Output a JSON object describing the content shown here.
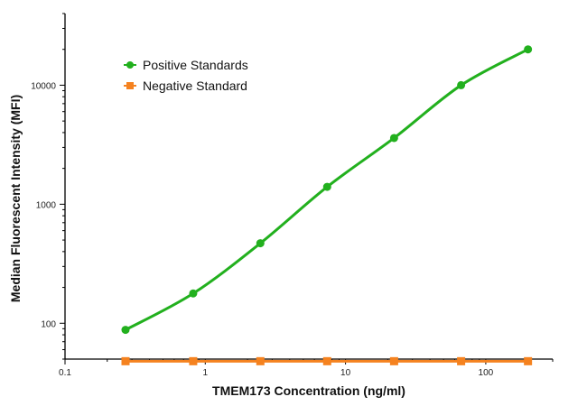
{
  "chart_data": {
    "type": "line",
    "xlabel": "TMEM173 Concentration (ng/ml)",
    "ylabel": "Median Fluorescent Intensity (MFI)",
    "x_scale": "log",
    "y_scale": "log",
    "xlim": [
      0.1,
      300
    ],
    "ylim": [
      50,
      40000
    ],
    "x_ticks": [
      0.1,
      1,
      10,
      100
    ],
    "x_tick_labels": [
      "0.1",
      "1",
      "10",
      "100"
    ],
    "y_ticks": [
      100,
      1000,
      10000
    ],
    "y_tick_labels": [
      "100",
      "1000",
      "10000"
    ],
    "grid": false,
    "legend_position": "top-left",
    "series": [
      {
        "name": "Positive Standards",
        "color": "#22b01e",
        "marker": "circle",
        "x": [
          0.27,
          0.82,
          2.47,
          7.4,
          22.2,
          66.7,
          200
        ],
        "y": [
          88,
          178,
          470,
          1400,
          3600,
          10000,
          20000
        ]
      },
      {
        "name": "Negative Standard",
        "color": "#f5821f",
        "marker": "square",
        "x": [
          0.27,
          0.82,
          2.47,
          7.4,
          22.2,
          66.7,
          200
        ],
        "y": [
          48,
          48,
          48,
          48,
          48,
          48,
          48
        ]
      }
    ]
  }
}
